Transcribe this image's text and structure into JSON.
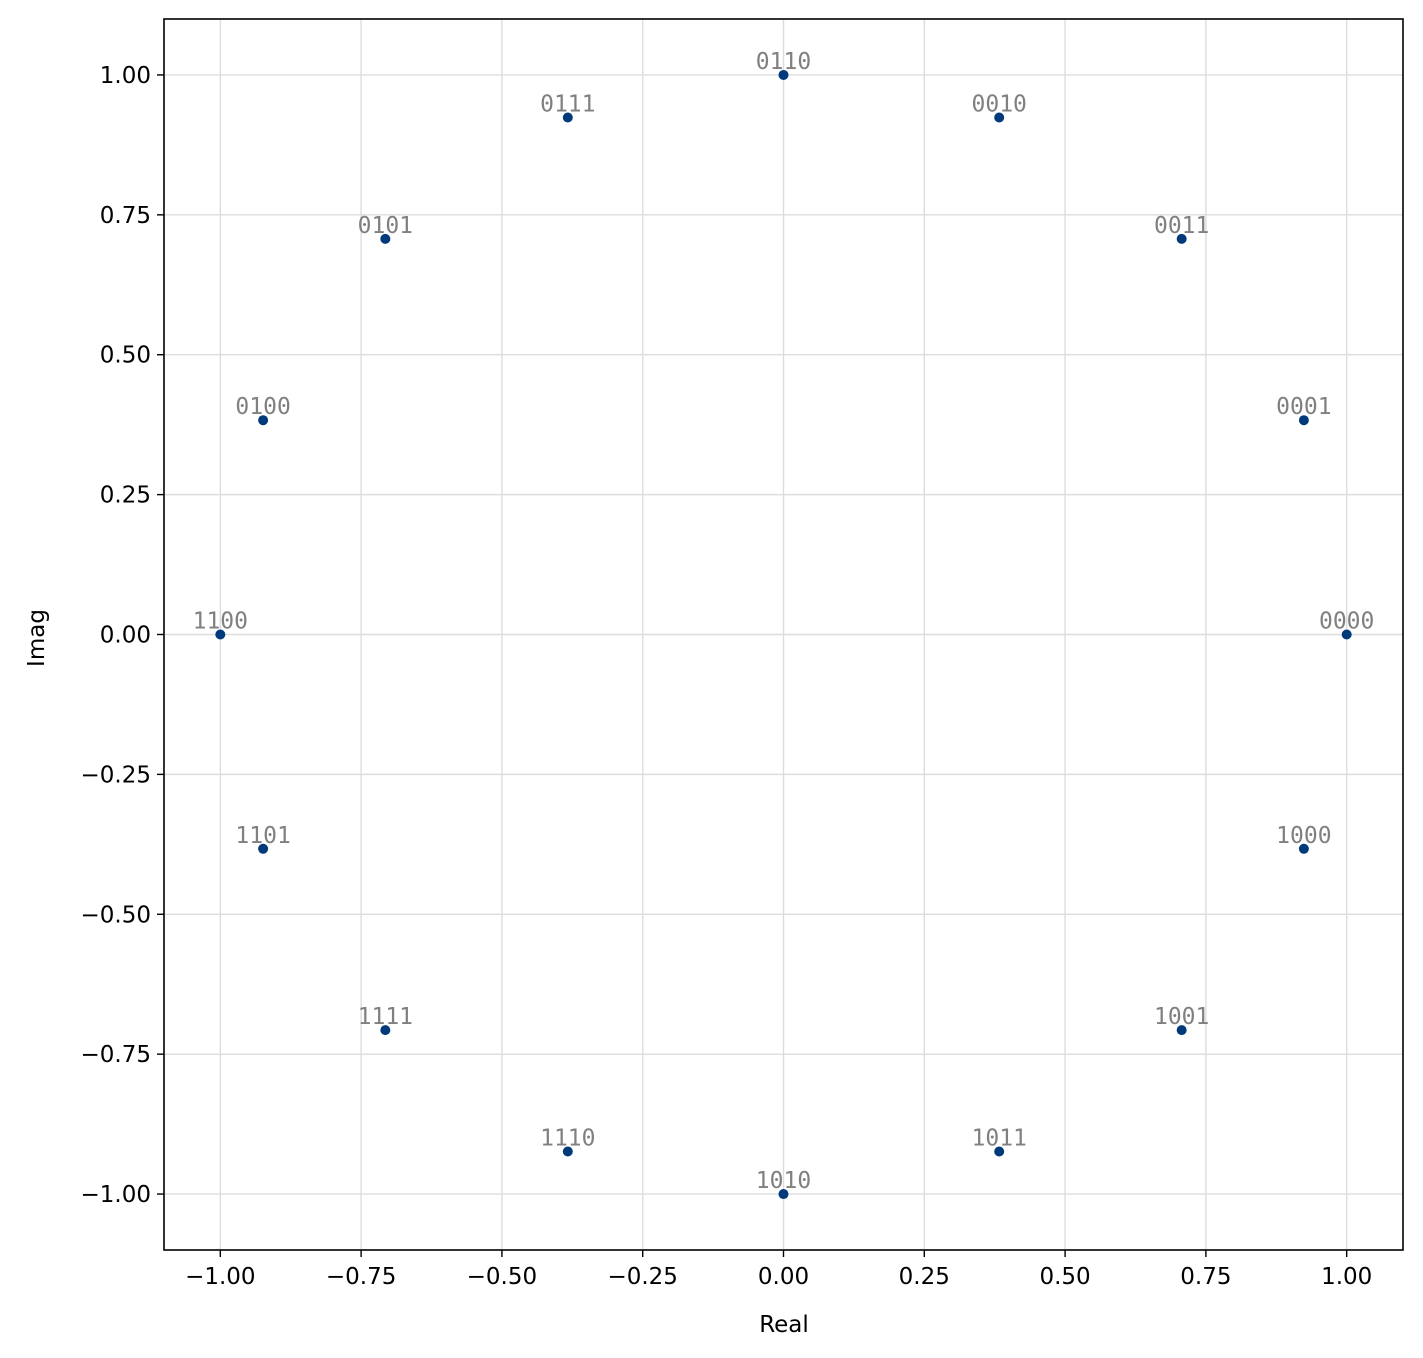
{
  "chart_data": {
    "type": "scatter",
    "title": "",
    "xlabel": "Real",
    "ylabel": "Imag",
    "xlim": [
      -1.1,
      1.1
    ],
    "ylim": [
      -1.1,
      1.1
    ],
    "grid": true,
    "colors": {
      "point": "#003a7a",
      "label": "#808080",
      "grid": "#dddddd",
      "axes": "#000000"
    },
    "xticks": [
      -1.0,
      -0.75,
      -0.5,
      -0.25,
      0.0,
      0.25,
      0.5,
      0.75,
      1.0
    ],
    "yticks": [
      -1.0,
      -0.75,
      -0.5,
      -0.25,
      0.0,
      0.25,
      0.5,
      0.75,
      1.0
    ],
    "xtick_labels": [
      "−1.00",
      "−0.75",
      "−0.50",
      "−0.25",
      "0.00",
      "0.25",
      "0.50",
      "0.75",
      "1.00"
    ],
    "ytick_labels": [
      "−1.00",
      "−0.75",
      "−0.50",
      "−0.25",
      "0.00",
      "0.25",
      "0.50",
      "0.75",
      "1.00"
    ],
    "points": [
      {
        "label": "0000",
        "x": 1.0,
        "y": 0.0
      },
      {
        "label": "0001",
        "x": 0.924,
        "y": 0.383
      },
      {
        "label": "0011",
        "x": 0.707,
        "y": 0.707
      },
      {
        "label": "0010",
        "x": 0.383,
        "y": 0.924
      },
      {
        "label": "0110",
        "x": 0.0,
        "y": 1.0
      },
      {
        "label": "0111",
        "x": -0.383,
        "y": 0.924
      },
      {
        "label": "0101",
        "x": -0.707,
        "y": 0.707
      },
      {
        "label": "0100",
        "x": -0.924,
        "y": 0.383
      },
      {
        "label": "1100",
        "x": -1.0,
        "y": 0.0
      },
      {
        "label": "1101",
        "x": -0.924,
        "y": -0.383
      },
      {
        "label": "1111",
        "x": -0.707,
        "y": -0.707
      },
      {
        "label": "1110",
        "x": -0.383,
        "y": -0.924
      },
      {
        "label": "1010",
        "x": 0.0,
        "y": -1.0
      },
      {
        "label": "1011",
        "x": 0.383,
        "y": -0.924
      },
      {
        "label": "1001",
        "x": 0.707,
        "y": -0.707
      },
      {
        "label": "1000",
        "x": 0.924,
        "y": -0.383
      }
    ]
  }
}
